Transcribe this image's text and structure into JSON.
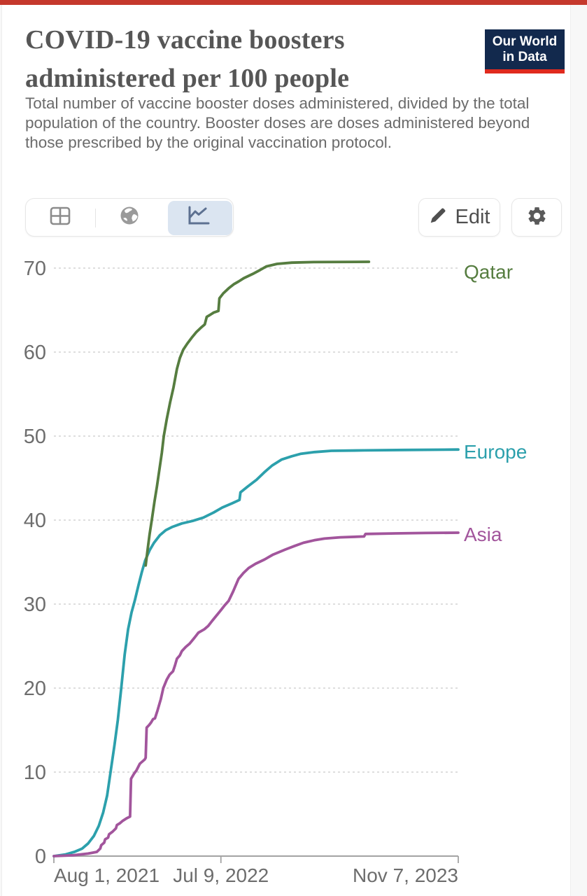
{
  "page": {
    "top_bar_color": "#c5382c"
  },
  "logo": {
    "line1": "Our World",
    "line2": "in Data",
    "bg_color": "#12294d",
    "accent_color": "#e02a1e"
  },
  "header": {
    "title_line1": "COVID-19 vaccine boosters",
    "title_line2": "administered per 100 people",
    "subtitle": "Total number of vaccine booster doses administered, divided by the total population of the country. Booster doses are doses administered beyond those prescribed by the original vaccination protocol."
  },
  "toolbar": {
    "views": [
      "table",
      "map",
      "chart"
    ],
    "active_view": "chart",
    "edit_label": "Edit"
  },
  "chart_data": {
    "type": "line",
    "title": "COVID-19 vaccine boosters administered per 100 people",
    "xlabel": "",
    "ylabel": "",
    "x_range": [
      "2021-08-01",
      "2023-11-07"
    ],
    "ylim": [
      0,
      70
    ],
    "grid": true,
    "legend_position": "right-end-labels",
    "x_ticks": [
      {
        "date": "2021-08-01",
        "label": "Aug 1, 2021",
        "align": "start"
      },
      {
        "date": "2022-07-09",
        "label": "Jul 9, 2022",
        "align": "middle"
      },
      {
        "date": "2023-11-07",
        "label": "Nov 7, 2023",
        "align": "end"
      }
    ],
    "y_ticks": [
      0,
      10,
      20,
      30,
      40,
      50,
      60,
      70
    ],
    "series": [
      {
        "name": "Europe",
        "color": "#2ca0ac",
        "label_dy": 13,
        "points": [
          [
            "2021-08-01",
            0
          ],
          [
            "2021-08-25",
            0.2
          ],
          [
            "2021-09-12",
            0.5
          ],
          [
            "2021-09-28",
            0.9
          ],
          [
            "2021-10-10",
            1.5
          ],
          [
            "2021-10-22",
            2.4
          ],
          [
            "2021-11-01",
            3.6
          ],
          [
            "2021-11-10",
            5.2
          ],
          [
            "2021-11-18",
            7.2
          ],
          [
            "2021-11-25",
            10.0
          ],
          [
            "2021-12-03",
            13.2
          ],
          [
            "2021-12-10",
            16.2
          ],
          [
            "2021-12-17",
            20.0
          ],
          [
            "2021-12-24",
            24.0
          ],
          [
            "2021-12-31",
            27.0
          ],
          [
            "2022-01-07",
            29.0
          ],
          [
            "2022-01-14",
            30.5
          ],
          [
            "2022-01-21",
            32.2
          ],
          [
            "2022-01-28",
            33.8
          ],
          [
            "2022-02-04",
            35.2
          ],
          [
            "2022-02-13",
            36.4
          ],
          [
            "2022-02-22",
            37.3
          ],
          [
            "2022-03-06",
            38.2
          ],
          [
            "2022-03-18",
            38.8
          ],
          [
            "2022-04-01",
            39.2
          ],
          [
            "2022-04-20",
            39.6
          ],
          [
            "2022-05-12",
            39.9
          ],
          [
            "2022-06-03",
            40.3
          ],
          [
            "2022-06-24",
            40.9
          ],
          [
            "2022-07-12",
            41.5
          ],
          [
            "2022-08-01",
            42.0
          ],
          [
            "2022-08-16",
            42.4
          ],
          [
            "2022-08-18",
            43.3
          ],
          [
            "2022-09-02",
            44.0
          ],
          [
            "2022-09-20",
            44.8
          ],
          [
            "2022-10-06",
            45.7
          ],
          [
            "2022-10-22",
            46.5
          ],
          [
            "2022-11-10",
            47.2
          ],
          [
            "2022-12-01",
            47.6
          ],
          [
            "2022-12-20",
            47.9
          ],
          [
            "2023-01-17",
            48.1
          ],
          [
            "2023-02-20",
            48.25
          ],
          [
            "2023-04-28",
            48.3
          ],
          [
            "2023-07-20",
            48.35
          ],
          [
            "2023-11-07",
            48.4
          ]
        ]
      },
      {
        "name": "Asia",
        "color": "#a2559c",
        "label_dy": 12,
        "points": [
          [
            "2021-08-01",
            0
          ],
          [
            "2021-09-10",
            0.1
          ],
          [
            "2021-10-10",
            0.3
          ],
          [
            "2021-10-28",
            0.5
          ],
          [
            "2021-11-04",
            0.9
          ],
          [
            "2021-11-06",
            1.3
          ],
          [
            "2021-11-12",
            1.6
          ],
          [
            "2021-11-14",
            2.0
          ],
          [
            "2021-11-20",
            2.2
          ],
          [
            "2021-11-22",
            2.6
          ],
          [
            "2021-11-29",
            2.9
          ],
          [
            "2021-12-06",
            3.3
          ],
          [
            "2021-12-08",
            3.7
          ],
          [
            "2021-12-14",
            3.9
          ],
          [
            "2021-12-20",
            4.2
          ],
          [
            "2021-12-28",
            4.5
          ],
          [
            "2022-01-04",
            4.7
          ],
          [
            "2022-01-06",
            9.2
          ],
          [
            "2022-01-12",
            9.8
          ],
          [
            "2022-01-17",
            10.2
          ],
          [
            "2022-01-24",
            11.0
          ],
          [
            "2022-02-03",
            11.5
          ],
          [
            "2022-02-05",
            11.7
          ],
          [
            "2022-02-07",
            15.3
          ],
          [
            "2022-02-12",
            15.6
          ],
          [
            "2022-02-16",
            15.9
          ],
          [
            "2022-02-20",
            16.3
          ],
          [
            "2022-02-24",
            16.4
          ],
          [
            "2022-03-01",
            17.3
          ],
          [
            "2022-03-06",
            18.3
          ],
          [
            "2022-03-08",
            18.7
          ],
          [
            "2022-03-13",
            20.0
          ],
          [
            "2022-03-20",
            21.0
          ],
          [
            "2022-03-26",
            21.6
          ],
          [
            "2022-04-02",
            22.0
          ],
          [
            "2022-04-06",
            22.7
          ],
          [
            "2022-04-10",
            23.5
          ],
          [
            "2022-04-16",
            23.9
          ],
          [
            "2022-04-20",
            24.4
          ],
          [
            "2022-04-28",
            24.9
          ],
          [
            "2022-05-06",
            25.3
          ],
          [
            "2022-05-16",
            26.0
          ],
          [
            "2022-05-24",
            26.6
          ],
          [
            "2022-06-05",
            27.0
          ],
          [
            "2022-06-13",
            27.4
          ],
          [
            "2022-06-21",
            28.0
          ],
          [
            "2022-06-28",
            28.5
          ],
          [
            "2022-07-08",
            29.2
          ],
          [
            "2022-07-16",
            29.8
          ],
          [
            "2022-07-25",
            30.4
          ],
          [
            "2022-08-03",
            31.5
          ],
          [
            "2022-08-14",
            33.0
          ],
          [
            "2022-08-24",
            33.7
          ],
          [
            "2022-09-04",
            34.3
          ],
          [
            "2022-09-18",
            34.8
          ],
          [
            "2022-10-06",
            35.3
          ],
          [
            "2022-10-24",
            35.9
          ],
          [
            "2022-11-18",
            36.5
          ],
          [
            "2022-12-06",
            36.9
          ],
          [
            "2022-12-25",
            37.3
          ],
          [
            "2023-01-16",
            37.6
          ],
          [
            "2023-02-06",
            37.8
          ],
          [
            "2023-03-10",
            37.95
          ],
          [
            "2023-04-28",
            38.05
          ],
          [
            "2023-05-01",
            38.35
          ],
          [
            "2023-07-01",
            38.42
          ],
          [
            "2023-09-01",
            38.47
          ],
          [
            "2023-11-07",
            38.5
          ]
        ]
      },
      {
        "name": "Qatar",
        "color": "#567d40",
        "label_dy": 24,
        "points": [
          [
            "2022-02-05",
            34.6
          ],
          [
            "2022-02-09",
            36.5
          ],
          [
            "2022-02-13",
            38.3
          ],
          [
            "2022-02-18",
            40.2
          ],
          [
            "2022-02-23",
            42.2
          ],
          [
            "2022-02-28",
            44.0
          ],
          [
            "2022-03-05",
            46.0
          ],
          [
            "2022-03-10",
            48.0
          ],
          [
            "2022-03-14",
            50.0
          ],
          [
            "2022-03-20",
            52.0
          ],
          [
            "2022-03-27",
            54.0
          ],
          [
            "2022-04-03",
            55.8
          ],
          [
            "2022-04-10",
            58.0
          ],
          [
            "2022-04-16",
            59.3
          ],
          [
            "2022-04-23",
            60.3
          ],
          [
            "2022-05-01",
            61.0
          ],
          [
            "2022-05-10",
            61.7
          ],
          [
            "2022-05-20",
            62.4
          ],
          [
            "2022-05-29",
            62.9
          ],
          [
            "2022-06-06",
            63.3
          ],
          [
            "2022-06-10",
            64.2
          ],
          [
            "2022-06-16",
            64.4
          ],
          [
            "2022-06-24",
            64.7
          ],
          [
            "2022-07-04",
            64.9
          ],
          [
            "2022-07-06",
            66.4
          ],
          [
            "2022-07-14",
            67.0
          ],
          [
            "2022-07-25",
            67.6
          ],
          [
            "2022-08-05",
            68.1
          ],
          [
            "2022-08-14",
            68.4
          ],
          [
            "2022-08-25",
            68.8
          ],
          [
            "2022-09-12",
            69.3
          ],
          [
            "2022-09-28",
            69.8
          ],
          [
            "2022-10-10",
            70.2
          ],
          [
            "2022-11-01",
            70.5
          ],
          [
            "2022-12-01",
            70.65
          ],
          [
            "2023-01-15",
            70.72
          ],
          [
            "2023-05-08",
            70.75
          ]
        ]
      }
    ]
  }
}
